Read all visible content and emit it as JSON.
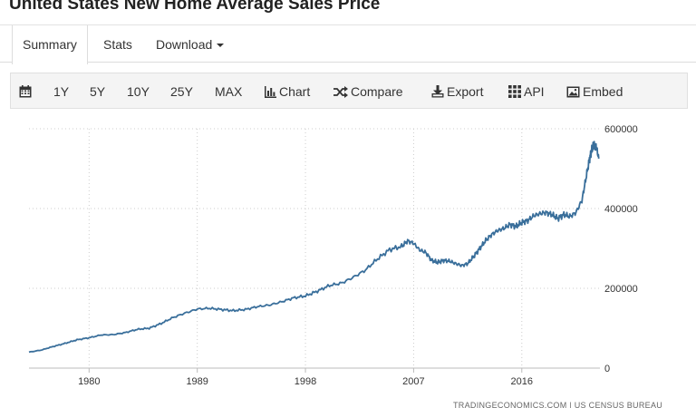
{
  "page": {
    "title": "United States New Home Average Sales Price"
  },
  "tabs": [
    {
      "label": "Summary",
      "active": true
    },
    {
      "label": "Stats",
      "active": false
    },
    {
      "label": "Download",
      "active": false
    }
  ],
  "toolbar": {
    "calendar_icon": "calendar-icon",
    "ranges": [
      "1Y",
      "5Y",
      "10Y",
      "25Y",
      "MAX"
    ],
    "chart_label": "Chart",
    "compare_label": "Compare",
    "export_label": "Export",
    "api_label": "API",
    "embed_label": "Embed"
  },
  "source": "TRADINGECONOMICS.COM | US CENSUS BUREAU",
  "colors": {
    "line": "#3a6f9b",
    "grid": "#cccccc",
    "toolbar_bg": "#f4f4f4"
  },
  "chart_data": {
    "type": "line",
    "title": "",
    "xlabel": "",
    "ylabel": "",
    "x_ticks": [
      "1980",
      "1989",
      "1998",
      "2007",
      "2016"
    ],
    "y_ticks": [
      "600000",
      "400000",
      "200000",
      "0"
    ],
    "ylim": [
      0,
      600000
    ],
    "xlim": [
      1975.0,
      2022.5
    ],
    "y_axis_position": "right",
    "grid": true,
    "series": [
      {
        "x": [
          1975.0,
          1976.0,
          1977.0,
          1978.0,
          1979.0,
          1980.0,
          1981.0,
          1982.0,
          1983.0,
          1984.0,
          1985.0,
          1986.0,
          1987.0,
          1988.0,
          1989.0,
          1990.0,
          1991.0,
          1992.0,
          1993.0,
          1994.0,
          1995.0,
          1996.0,
          1997.0,
          1998.0,
          1999.0,
          2000.0,
          2001.0,
          2002.0,
          2003.0,
          2004.0,
          2005.0,
          2006.0,
          2006.5,
          2007.0,
          2007.5,
          2008.0,
          2008.5,
          2009.0,
          2009.5,
          2010.0,
          2010.5,
          2011.0,
          2011.5,
          2012.0,
          2012.5,
          2013.0,
          2013.5,
          2014.0,
          2014.5,
          2015.0,
          2015.5,
          2016.0,
          2016.5,
          2017.0,
          2017.5,
          2018.0,
          2018.5,
          2019.0,
          2019.5,
          2020.0,
          2020.5,
          2021.0,
          2021.3,
          2021.6,
          2021.8,
          2022.0,
          2022.2,
          2022.4
        ],
        "values": [
          40000,
          45000,
          54000,
          62000,
          71000,
          76000,
          83000,
          84000,
          89000,
          97000,
          100000,
          112000,
          127000,
          138000,
          148000,
          150000,
          147000,
          144000,
          147000,
          154000,
          158000,
          166000,
          176000,
          181000,
          193000,
          207000,
          213000,
          228000,
          246000,
          274000,
          297000,
          305000,
          319000,
          313000,
          296000,
          290000,
          270000,
          265000,
          270000,
          268000,
          262000,
          257000,
          262000,
          280000,
          300000,
          320000,
          335000,
          345000,
          350000,
          360000,
          355000,
          365000,
          370000,
          382000,
          387000,
          390000,
          385000,
          375000,
          385000,
          380000,
          390000,
          420000,
          470000,
          520000,
          545000,
          560000,
          555000,
          525000
        ]
      }
    ]
  }
}
